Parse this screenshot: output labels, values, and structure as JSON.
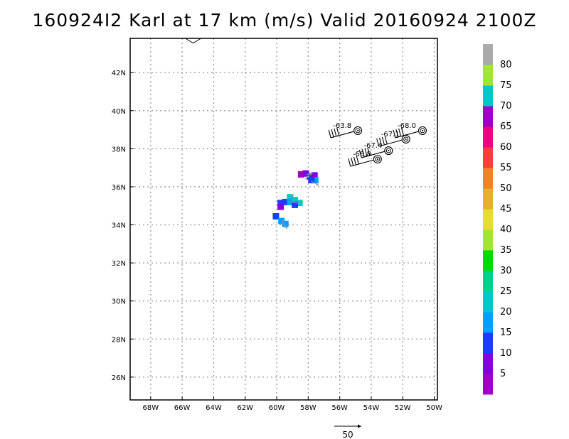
{
  "title": "160924I2 Karl at 17 km (m/s) Valid 20160924 2100Z",
  "map": {
    "lon_range": [
      -69.3,
      -49.8
    ],
    "lat_range": [
      24.8,
      43.8
    ],
    "lon_ticks": [
      {
        "v": -68,
        "label": "68W"
      },
      {
        "v": -66,
        "label": "66W"
      },
      {
        "v": -64,
        "label": "64W"
      },
      {
        "v": -62,
        "label": "62W"
      },
      {
        "v": -60,
        "label": "60W"
      },
      {
        "v": -58,
        "label": "58W"
      },
      {
        "v": -56,
        "label": "56W"
      },
      {
        "v": -54,
        "label": "54W"
      },
      {
        "v": -52,
        "label": "52W"
      },
      {
        "v": -50,
        "label": "50W"
      }
    ],
    "lat_ticks": [
      {
        "v": 26,
        "label": "26N"
      },
      {
        "v": 28,
        "label": "28N"
      },
      {
        "v": 30,
        "label": "30N"
      },
      {
        "v": 32,
        "label": "32N"
      },
      {
        "v": 34,
        "label": "34N"
      },
      {
        "v": 36,
        "label": "36N"
      },
      {
        "v": 38,
        "label": "38N"
      },
      {
        "v": 40,
        "label": "40N"
      },
      {
        "v": 42,
        "label": "42N"
      }
    ],
    "grid": true,
    "grid_color": "#999999",
    "coastline_color": "#000000",
    "coastline": [
      [
        -65.8,
        43.8
      ],
      [
        -65.3,
        43.55
      ],
      [
        -64.8,
        43.8
      ]
    ]
  },
  "colorbar": {
    "colors": [
      "#a000c8",
      "#8200dc",
      "#1e3cff",
      "#00a0ff",
      "#00c8c8",
      "#00d28c",
      "#00dc00",
      "#a0e632",
      "#e6dc32",
      "#e6af2d",
      "#f08228",
      "#fa3c3c",
      "#f00082",
      "#a000c8",
      "#00c8c8",
      "#a0e632",
      "#aaaaaa"
    ],
    "labels": [
      "5",
      "10",
      "15",
      "20",
      "25",
      "30",
      "35",
      "40",
      "45",
      "50",
      "55",
      "60",
      "65",
      "70",
      "75",
      "80"
    ]
  },
  "wind_cells": [
    {
      "lon": -60.05,
      "lat": 34.45,
      "color": "#1e3cff"
    },
    {
      "lon": -59.7,
      "lat": 34.2,
      "color": "#00a0ff"
    },
    {
      "lon": -59.45,
      "lat": 34.05,
      "color": "#00a0ff"
    },
    {
      "lon": -59.75,
      "lat": 35.15,
      "color": "#1e3cff"
    },
    {
      "lon": -59.75,
      "lat": 34.95,
      "color": "#8200dc"
    },
    {
      "lon": -59.45,
      "lat": 35.2,
      "color": "#1e3cff"
    },
    {
      "lon": -59.15,
      "lat": 35.45,
      "color": "#00c8c8"
    },
    {
      "lon": -59.15,
      "lat": 35.2,
      "color": "#00a0ff"
    },
    {
      "lon": -58.85,
      "lat": 35.3,
      "color": "#00c8c8"
    },
    {
      "lon": -58.55,
      "lat": 35.15,
      "color": "#00c8c8"
    },
    {
      "lon": -58.85,
      "lat": 35.05,
      "color": "#1e3cff"
    },
    {
      "lon": -58.45,
      "lat": 36.65,
      "color": "#a000c8"
    },
    {
      "lon": -58.15,
      "lat": 36.7,
      "color": "#8200dc"
    },
    {
      "lon": -57.9,
      "lat": 36.55,
      "color": "#1e3cff"
    },
    {
      "lon": -57.6,
      "lat": 36.6,
      "color": "#8200dc"
    },
    {
      "lon": -57.55,
      "lat": 36.35,
      "color": "#00a0ff"
    },
    {
      "lon": -57.8,
      "lat": 36.35,
      "color": "#1e3cff"
    }
  ],
  "wind_arrows": [
    {
      "lon": -59.7,
      "lat": 34.25,
      "u": 8,
      "v": -12
    },
    {
      "lon": -59.2,
      "lat": 35.2,
      "u": 16,
      "v": -2
    },
    {
      "lon": -59.4,
      "lat": 35.35,
      "u": 10,
      "v": 7
    },
    {
      "lon": -58.2,
      "lat": 36.4,
      "u": 6,
      "v": 5
    },
    {
      "lon": -57.8,
      "lat": 36.3,
      "u": 10,
      "v": -6
    },
    {
      "lon": -58.1,
      "lat": 36.65,
      "u": 8,
      "v": 1
    }
  ],
  "storm_track": [
    {
      "lon": -54.85,
      "lat": 38.95,
      "label": "-63.8"
    },
    {
      "lon": -53.6,
      "lat": 37.45,
      "label": "-68.8"
    },
    {
      "lon": -52.9,
      "lat": 37.9,
      "label": "-67.4"
    },
    {
      "lon": -51.8,
      "lat": 38.5,
      "label": "-67.1"
    },
    {
      "lon": -50.75,
      "lat": 38.95,
      "label": "-68.0"
    }
  ],
  "reference_vector": {
    "label": "50",
    "magnitude": 50
  }
}
